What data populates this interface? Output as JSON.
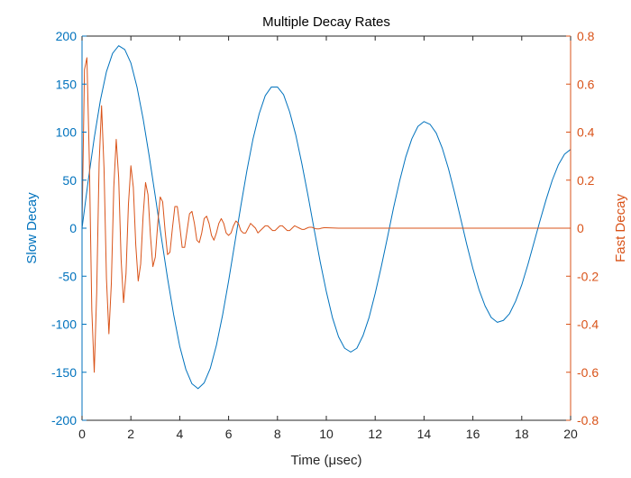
{
  "chart_data": {
    "type": "line",
    "title": "Multiple Decay Rates",
    "xlabel": "Time (μsec)",
    "xlim": [
      0,
      20
    ],
    "xticks": [
      0,
      2,
      4,
      6,
      8,
      10,
      12,
      14,
      16,
      18,
      20
    ],
    "y_left": {
      "label": "Slow Decay",
      "lim": [
        -200,
        200
      ],
      "ticks": [
        -200,
        -150,
        -100,
        -50,
        0,
        50,
        100,
        150,
        200
      ],
      "color": "#0072BD"
    },
    "y_right": {
      "label": "Fast Decay",
      "lim": [
        -0.8,
        0.8
      ],
      "ticks": [
        -0.8,
        -0.6,
        -0.4,
        -0.2,
        0,
        0.2,
        0.4,
        0.6,
        0.8
      ],
      "color": "#D95319"
    },
    "grid": false,
    "series": [
      {
        "axis": "left",
        "color": "#0072BD",
        "x": [
          0,
          0.25,
          0.5,
          0.75,
          1.0,
          1.25,
          1.5,
          1.75,
          2.0,
          2.25,
          2.5,
          2.75,
          3.0,
          3.25,
          3.5,
          3.75,
          4.0,
          4.25,
          4.5,
          4.75,
          5.0,
          5.25,
          5.5,
          5.75,
          6.0,
          6.25,
          6.5,
          6.75,
          7.0,
          7.25,
          7.5,
          7.75,
          8.0,
          8.25,
          8.5,
          8.75,
          9.0,
          9.25,
          9.5,
          9.75,
          10.0,
          10.25,
          10.5,
          10.75,
          11.0,
          11.25,
          11.5,
          11.75,
          12.0,
          12.25,
          12.5,
          12.75,
          13.0,
          13.25,
          13.5,
          13.75,
          14.0,
          14.25,
          14.5,
          14.75,
          15.0,
          15.25,
          15.5,
          15.75,
          16.0,
          16.25,
          16.5,
          16.75,
          17.0,
          17.25,
          17.5,
          17.75,
          18.0,
          18.25,
          18.5,
          18.75,
          19.0,
          19.25,
          19.5,
          19.75,
          20.0
        ],
        "y": [
          0,
          49,
          94,
          133,
          163,
          182,
          190,
          186,
          172,
          147,
          114,
          75,
          33,
          -10,
          -52,
          -90,
          -123,
          -147,
          -162,
          -167,
          -161,
          -146,
          -122,
          -91,
          -55,
          -16,
          23,
          60,
          93,
          119,
          138,
          147,
          147,
          139,
          121,
          97,
          67,
          34,
          -1,
          -35,
          -66,
          -93,
          -113,
          -125,
          -129,
          -125,
          -112,
          -93,
          -68,
          -40,
          -10,
          21,
          49,
          74,
          93,
          106,
          111,
          108,
          99,
          83,
          62,
          37,
          10,
          -17,
          -42,
          -64,
          -81,
          -93,
          -98,
          -96,
          -89,
          -76,
          -59,
          -38,
          -15,
          8,
          30,
          50,
          66,
          77,
          82
        ]
      },
      {
        "axis": "right",
        "color": "#D95319",
        "x": [
          0,
          0.1,
          0.2,
          0.3,
          0.4,
          0.5,
          0.6,
          0.7,
          0.8,
          0.9,
          1.0,
          1.1,
          1.2,
          1.3,
          1.4,
          1.5,
          1.6,
          1.7,
          1.8,
          1.9,
          2.0,
          2.1,
          2.2,
          2.3,
          2.4,
          2.5,
          2.6,
          2.7,
          2.8,
          2.9,
          3.0,
          3.1,
          3.2,
          3.3,
          3.4,
          3.5,
          3.6,
          3.7,
          3.8,
          3.9,
          4.0,
          4.1,
          4.2,
          4.3,
          4.4,
          4.5,
          4.6,
          4.7,
          4.8,
          4.9,
          5.0,
          5.1,
          5.2,
          5.3,
          5.4,
          5.5,
          5.6,
          5.7,
          5.8,
          5.9,
          6.0,
          6.1,
          6.2,
          6.3,
          6.4,
          6.5,
          6.6,
          6.7,
          6.8,
          6.9,
          7.0,
          7.1,
          7.2,
          7.3,
          7.4,
          7.5,
          7.6,
          7.7,
          7.8,
          7.9,
          8.0,
          8.1,
          8.2,
          8.3,
          8.4,
          8.5,
          8.6,
          8.7,
          8.8,
          8.9,
          9.0,
          9.1,
          9.2,
          9.3,
          9.4,
          9.5,
          9.6,
          9.7,
          9.8,
          9.9,
          10.0,
          10.5,
          11.0,
          12.0,
          14.0,
          16.0,
          18.0,
          20.0
        ],
        "y": [
          0,
          0.66,
          0.71,
          0.28,
          -0.34,
          -0.6,
          -0.27,
          0.27,
          0.51,
          0.25,
          -0.21,
          -0.44,
          -0.23,
          0.17,
          0.37,
          0.21,
          -0.13,
          -0.31,
          -0.19,
          0.1,
          0.26,
          0.17,
          -0.07,
          -0.22,
          -0.15,
          0.05,
          0.19,
          0.14,
          -0.03,
          -0.16,
          -0.12,
          0.02,
          0.13,
          0.11,
          -0.01,
          -0.11,
          -0.1,
          0,
          0.09,
          0.09,
          0.01,
          -0.08,
          -0.08,
          -0.01,
          0.06,
          0.07,
          0.02,
          -0.05,
          -0.06,
          -0.02,
          0.04,
          0.05,
          0.02,
          -0.03,
          -0.05,
          -0.02,
          0.02,
          0.04,
          0.02,
          -0.02,
          -0.03,
          -0.02,
          0.01,
          0.03,
          0.02,
          -0.01,
          -0.02,
          -0.02,
          0,
          0.02,
          0.01,
          0,
          -0.02,
          -0.01,
          0,
          0.01,
          0.01,
          0,
          -0.01,
          -0.01,
          0,
          0.01,
          0.01,
          0,
          -0.01,
          -0.01,
          0,
          0.01,
          0.005,
          0,
          -0.005,
          -0.005,
          0,
          0.004,
          0.004,
          0,
          -0.003,
          -0.003,
          0,
          0.002,
          0.002,
          0,
          0,
          0,
          0,
          0,
          0,
          0
        ]
      }
    ]
  }
}
